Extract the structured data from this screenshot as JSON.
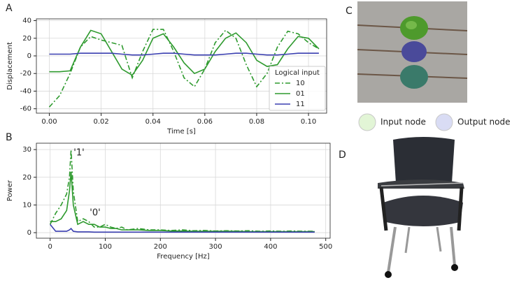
{
  "panels": {
    "a": "A",
    "b": "B",
    "c": "C",
    "d": "D"
  },
  "node_legend": {
    "input": "Input node",
    "output": "Output node"
  },
  "chart_data": [
    {
      "type": "line",
      "x_label": "Time [s]",
      "y_label": "Displacement",
      "xlim": [
        -0.005,
        0.107
      ],
      "ylim": [
        -65,
        42
      ],
      "xticks": [
        {
          "value": 0,
          "label": "0.00"
        },
        {
          "value": 0.02,
          "label": "0.02"
        },
        {
          "value": 0.04,
          "label": "0.04"
        },
        {
          "value": 0.06,
          "label": "0.06"
        },
        {
          "value": 0.08,
          "label": "0.08"
        },
        {
          "value": 0.1,
          "label": "0.10"
        }
      ],
      "yticks": [
        -60,
        -40,
        -20,
        0,
        20,
        40
      ],
      "grid": true,
      "legend": "lower right",
      "legend_title": "Logical input",
      "x": [
        0,
        0.004,
        0.008,
        0.012,
        0.016,
        0.02,
        0.024,
        0.028,
        0.032,
        0.036,
        0.04,
        0.044,
        0.048,
        0.052,
        0.056,
        0.06,
        0.064,
        0.068,
        0.072,
        0.076,
        0.08,
        0.084,
        0.088,
        0.092,
        0.096,
        0.1,
        0.104
      ],
      "series": [
        {
          "name": "10",
          "color": "#2e9a2e",
          "linestyle": "dashdot",
          "values": [
            -58,
            -45,
            -20,
            10,
            22,
            18,
            15,
            12,
            -25,
            5,
            30,
            30,
            5,
            -25,
            -35,
            -15,
            15,
            29,
            20,
            -10,
            -35,
            -20,
            10,
            28,
            25,
            15,
            8
          ]
        },
        {
          "name": "01",
          "color": "#2e9a2e",
          "linestyle": "solid",
          "values": [
            -18,
            -18,
            -17,
            10,
            29,
            25,
            5,
            -15,
            -22,
            -5,
            20,
            25,
            10,
            -8,
            -20,
            -15,
            5,
            20,
            26,
            15,
            -5,
            -12,
            -10,
            8,
            22,
            20,
            8
          ]
        },
        {
          "name": "11",
          "color": "#3a3fb0",
          "linestyle": "solid",
          "values": [
            2,
            2,
            2,
            3,
            3,
            3,
            3,
            2,
            1,
            1,
            2,
            3,
            3,
            2,
            1,
            1,
            1,
            2,
            3,
            3,
            2,
            1,
            1,
            2,
            3,
            3,
            3
          ]
        }
      ]
    },
    {
      "type": "line",
      "x_label": "Frequency [Hz]",
      "y_label": "Power",
      "xlim": [
        -25,
        508
      ],
      "ylim": [
        -2,
        32.3
      ],
      "xticks": [
        0,
        100,
        200,
        300,
        400,
        500
      ],
      "yticks": [
        0,
        10,
        20,
        30
      ],
      "grid": true,
      "annotations": [
        {
          "text": "'1'",
          "color": "#2e9a2e"
        },
        {
          "text": "'0'",
          "color": "#3a3fb0"
        }
      ],
      "x": [
        0,
        10,
        20,
        30,
        35,
        38,
        42,
        50,
        60,
        70,
        80,
        90,
        100,
        110,
        120,
        130,
        140,
        160,
        180,
        200,
        220,
        240,
        260,
        280,
        300,
        320,
        340,
        360,
        380,
        400,
        420,
        440,
        460,
        480
      ],
      "series": [
        {
          "name": "10",
          "color": "#2e9a2e",
          "linestyle": "dashdot",
          "values": [
            3,
            7,
            10,
            14,
            20,
            30,
            15,
            4,
            5,
            4,
            2,
            2,
            3,
            2,
            1.5,
            2,
            1,
            1.5,
            1,
            1,
            0.8,
            1,
            0.7,
            0.8,
            0.6,
            0.7,
            0.6,
            0.7,
            0.5,
            0.6,
            0.5,
            0.6,
            0.5,
            0.5
          ]
        },
        {
          "name": "01",
          "color": "#2e9a2e",
          "linestyle": "solid",
          "values": [
            4,
            4,
            5,
            8,
            15,
            22,
            10,
            3,
            4,
            3,
            3,
            2,
            2,
            1.5,
            1.5,
            1,
            1,
            1,
            0.8,
            0.8,
            0.6,
            0.6,
            0.5,
            0.5,
            0.5,
            0.5,
            0.5,
            0.4,
            0.4,
            0.4,
            0.4,
            0.4,
            0.4,
            0.4
          ]
        },
        {
          "name": "11",
          "color": "#3a3fb0",
          "linestyle": "solid",
          "values": [
            3,
            0.5,
            0.5,
            0.5,
            1,
            1.5,
            0.5,
            0.3,
            0.3,
            0.3,
            0.2,
            0.2,
            0.2,
            0.2,
            0.2,
            0.2,
            0.2,
            0.2,
            0.2,
            0.2,
            0.2,
            0.2,
            0.2,
            0.2,
            0.2,
            0.2,
            0.2,
            0.2,
            0.2,
            0.2,
            0.2,
            0.2,
            0.2,
            0.2
          ]
        }
      ]
    }
  ]
}
